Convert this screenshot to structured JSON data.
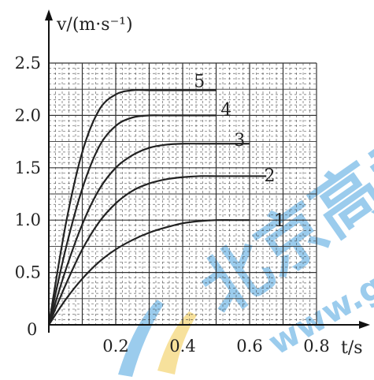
{
  "chart_data": {
    "type": "line",
    "ylabel": "v/(m·s⁻¹)",
    "xlabel": "t/s",
    "origin_label": "0",
    "xlim": [
      0,
      0.8
    ],
    "ylim": [
      0,
      2.5
    ],
    "x_ticks": [
      "0.2",
      "0.4",
      "0.6",
      "0.8"
    ],
    "y_ticks": [
      "0.5",
      "1.0",
      "1.5",
      "2.0",
      "2.5"
    ],
    "grid": true,
    "series": [
      {
        "name": "1",
        "x": [
          0,
          0.05,
          0.1,
          0.15,
          0.2,
          0.25,
          0.3,
          0.35,
          0.4,
          0.45,
          0.5,
          0.55,
          0.6
        ],
        "y": [
          0,
          0.24,
          0.44,
          0.6,
          0.72,
          0.81,
          0.88,
          0.93,
          0.97,
          0.99,
          1.0,
          1.0,
          1.0
        ]
      },
      {
        "name": "2",
        "x": [
          0,
          0.05,
          0.1,
          0.15,
          0.2,
          0.25,
          0.3,
          0.35,
          0.4,
          0.45,
          0.5,
          0.55,
          0.6,
          0.65
        ],
        "y": [
          0,
          0.38,
          0.72,
          0.98,
          1.16,
          1.28,
          1.35,
          1.39,
          1.41,
          1.42,
          1.42,
          1.42,
          1.42,
          1.42
        ]
      },
      {
        "name": "3",
        "x": [
          0,
          0.05,
          0.1,
          0.15,
          0.2,
          0.25,
          0.3,
          0.35,
          0.4,
          0.45,
          0.5,
          0.55,
          0.6
        ],
        "y": [
          0,
          0.52,
          0.96,
          1.29,
          1.5,
          1.62,
          1.69,
          1.72,
          1.73,
          1.73,
          1.73,
          1.73,
          1.73
        ]
      },
      {
        "name": "4",
        "x": [
          0,
          0.05,
          0.1,
          0.15,
          0.2,
          0.25,
          0.3,
          0.35,
          0.4,
          0.45,
          0.5
        ],
        "y": [
          0,
          0.72,
          1.3,
          1.7,
          1.9,
          1.98,
          2.0,
          2.0,
          2.0,
          2.0,
          2.0
        ]
      },
      {
        "name": "5",
        "x": [
          0,
          0.05,
          0.1,
          0.15,
          0.2,
          0.25,
          0.3,
          0.35,
          0.4,
          0.45,
          0.5
        ],
        "y": [
          0,
          0.95,
          1.65,
          2.05,
          2.2,
          2.24,
          2.24,
          2.24,
          2.24,
          2.24,
          2.24
        ]
      }
    ],
    "colors": {
      "grid": "#333333",
      "curve": "#222222",
      "watermark_blue": "#4aa3e0",
      "watermark_yellow": "#f2c94c"
    }
  },
  "watermark": {
    "text": "北京高考",
    "url_fragment": "www.g"
  }
}
